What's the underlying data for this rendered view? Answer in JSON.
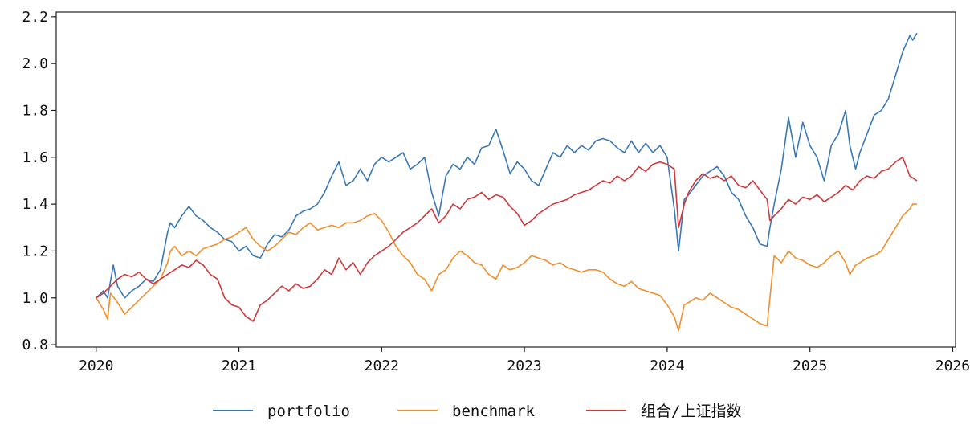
{
  "chart_data": {
    "type": "line",
    "title": "",
    "xlabel": "",
    "ylabel": "",
    "xlim": [
      2019.72,
      2026.02
    ],
    "ylim": [
      0.79,
      2.22
    ],
    "x_ticks": [
      "2020",
      "2021",
      "2022",
      "2023",
      "2024",
      "2025",
      "2026"
    ],
    "y_ticks": [
      "0.8",
      "1.0",
      "1.2",
      "1.4",
      "1.6",
      "1.8",
      "2.0",
      "2.2"
    ],
    "grid": false,
    "legend_position": "bottom-center",
    "series": [
      {
        "name": "portfolio",
        "color": "#3a78b6",
        "x": [
          2020.0,
          2020.05,
          2020.08,
          2020.12,
          2020.15,
          2020.2,
          2020.25,
          2020.3,
          2020.35,
          2020.4,
          2020.45,
          2020.5,
          2020.52,
          2020.55,
          2020.6,
          2020.65,
          2020.7,
          2020.75,
          2020.8,
          2020.85,
          2020.9,
          2020.95,
          2021.0,
          2021.05,
          2021.1,
          2021.15,
          2021.2,
          2021.25,
          2021.3,
          2021.35,
          2021.4,
          2021.45,
          2021.5,
          2021.55,
          2021.6,
          2021.65,
          2021.7,
          2021.75,
          2021.8,
          2021.85,
          2021.9,
          2021.95,
          2022.0,
          2022.05,
          2022.1,
          2022.15,
          2022.2,
          2022.25,
          2022.3,
          2022.35,
          2022.4,
          2022.45,
          2022.5,
          2022.55,
          2022.6,
          2022.65,
          2022.7,
          2022.75,
          2022.8,
          2022.85,
          2022.9,
          2022.95,
          2023.0,
          2023.05,
          2023.1,
          2023.15,
          2023.2,
          2023.25,
          2023.3,
          2023.35,
          2023.4,
          2023.45,
          2023.5,
          2023.55,
          2023.6,
          2023.65,
          2023.7,
          2023.75,
          2023.8,
          2023.85,
          2023.9,
          2023.95,
          2024.0,
          2024.05,
          2024.08,
          2024.12,
          2024.15,
          2024.2,
          2024.25,
          2024.3,
          2024.35,
          2024.4,
          2024.45,
          2024.5,
          2024.55,
          2024.6,
          2024.65,
          2024.7,
          2024.72,
          2024.75,
          2024.8,
          2024.85,
          2024.9,
          2024.95,
          2025.0,
          2025.05,
          2025.1,
          2025.15,
          2025.2,
          2025.25,
          2025.28,
          2025.32,
          2025.35,
          2025.4,
          2025.45,
          2025.5,
          2025.55,
          2025.6,
          2025.65,
          2025.7,
          2025.72,
          2025.75
        ],
        "values": [
          1.0,
          1.03,
          1.0,
          1.14,
          1.05,
          1.0,
          1.03,
          1.05,
          1.08,
          1.07,
          1.12,
          1.28,
          1.32,
          1.3,
          1.35,
          1.39,
          1.35,
          1.33,
          1.3,
          1.28,
          1.25,
          1.24,
          1.2,
          1.22,
          1.18,
          1.17,
          1.23,
          1.27,
          1.26,
          1.29,
          1.35,
          1.37,
          1.38,
          1.4,
          1.45,
          1.52,
          1.58,
          1.48,
          1.5,
          1.55,
          1.5,
          1.57,
          1.6,
          1.58,
          1.6,
          1.62,
          1.55,
          1.57,
          1.6,
          1.45,
          1.35,
          1.52,
          1.57,
          1.55,
          1.6,
          1.57,
          1.64,
          1.65,
          1.72,
          1.63,
          1.53,
          1.58,
          1.55,
          1.5,
          1.48,
          1.55,
          1.62,
          1.6,
          1.65,
          1.62,
          1.65,
          1.63,
          1.67,
          1.68,
          1.67,
          1.64,
          1.62,
          1.67,
          1.62,
          1.66,
          1.62,
          1.65,
          1.6,
          1.38,
          1.2,
          1.42,
          1.44,
          1.48,
          1.52,
          1.54,
          1.56,
          1.52,
          1.45,
          1.42,
          1.35,
          1.3,
          1.23,
          1.22,
          1.3,
          1.4,
          1.55,
          1.77,
          1.6,
          1.75,
          1.65,
          1.6,
          1.5,
          1.65,
          1.7,
          1.8,
          1.65,
          1.55,
          1.62,
          1.7,
          1.78,
          1.8,
          1.85,
          1.95,
          2.05,
          2.12,
          2.1,
          2.13
        ]
      },
      {
        "name": "benchmark",
        "color": "#f28e2b",
        "x": [
          2020.0,
          2020.05,
          2020.08,
          2020.1,
          2020.15,
          2020.2,
          2020.25,
          2020.3,
          2020.35,
          2020.4,
          2020.45,
          2020.5,
          2020.52,
          2020.55,
          2020.6,
          2020.65,
          2020.7,
          2020.75,
          2020.8,
          2020.85,
          2020.9,
          2020.95,
          2021.0,
          2021.05,
          2021.1,
          2021.15,
          2021.2,
          2021.25,
          2021.3,
          2021.35,
          2021.4,
          2021.45,
          2021.5,
          2021.55,
          2021.6,
          2021.65,
          2021.7,
          2021.75,
          2021.8,
          2021.85,
          2021.9,
          2021.95,
          2022.0,
          2022.05,
          2022.1,
          2022.15,
          2022.2,
          2022.25,
          2022.3,
          2022.35,
          2022.4,
          2022.45,
          2022.5,
          2022.55,
          2022.6,
          2022.65,
          2022.7,
          2022.75,
          2022.8,
          2022.85,
          2022.9,
          2022.95,
          2023.0,
          2023.05,
          2023.1,
          2023.15,
          2023.2,
          2023.25,
          2023.3,
          2023.35,
          2023.4,
          2023.45,
          2023.5,
          2023.55,
          2023.6,
          2023.65,
          2023.7,
          2023.75,
          2023.8,
          2023.85,
          2023.9,
          2023.95,
          2024.0,
          2024.05,
          2024.08,
          2024.12,
          2024.15,
          2024.2,
          2024.25,
          2024.3,
          2024.35,
          2024.4,
          2024.45,
          2024.5,
          2024.55,
          2024.6,
          2024.65,
          2024.7,
          2024.72,
          2024.75,
          2024.8,
          2024.85,
          2024.9,
          2024.95,
          2025.0,
          2025.05,
          2025.1,
          2025.15,
          2025.2,
          2025.25,
          2025.28,
          2025.32,
          2025.35,
          2025.4,
          2025.45,
          2025.5,
          2025.55,
          2025.6,
          2025.65,
          2025.7,
          2025.72,
          2025.75
        ],
        "values": [
          1.0,
          0.95,
          0.91,
          1.02,
          0.98,
          0.93,
          0.96,
          0.99,
          1.02,
          1.05,
          1.08,
          1.15,
          1.2,
          1.22,
          1.18,
          1.2,
          1.18,
          1.21,
          1.22,
          1.23,
          1.25,
          1.26,
          1.28,
          1.3,
          1.25,
          1.22,
          1.2,
          1.22,
          1.25,
          1.28,
          1.27,
          1.3,
          1.32,
          1.29,
          1.3,
          1.31,
          1.3,
          1.32,
          1.32,
          1.33,
          1.35,
          1.36,
          1.33,
          1.28,
          1.22,
          1.18,
          1.15,
          1.1,
          1.08,
          1.03,
          1.1,
          1.12,
          1.17,
          1.2,
          1.18,
          1.15,
          1.14,
          1.1,
          1.08,
          1.14,
          1.12,
          1.13,
          1.15,
          1.18,
          1.17,
          1.16,
          1.14,
          1.15,
          1.13,
          1.12,
          1.11,
          1.12,
          1.12,
          1.11,
          1.08,
          1.06,
          1.05,
          1.07,
          1.04,
          1.03,
          1.02,
          1.01,
          0.97,
          0.92,
          0.86,
          0.97,
          0.98,
          1.0,
          0.99,
          1.02,
          1.0,
          0.98,
          0.96,
          0.95,
          0.93,
          0.91,
          0.89,
          0.88,
          1.0,
          1.18,
          1.15,
          1.2,
          1.17,
          1.16,
          1.14,
          1.13,
          1.15,
          1.18,
          1.2,
          1.15,
          1.1,
          1.14,
          1.15,
          1.17,
          1.18,
          1.2,
          1.25,
          1.3,
          1.35,
          1.38,
          1.4,
          1.4
        ]
      },
      {
        "name": "组合/上证指数",
        "color": "#d0383a",
        "x": [
          2020.0,
          2020.05,
          2020.1,
          2020.15,
          2020.2,
          2020.25,
          2020.3,
          2020.35,
          2020.4,
          2020.45,
          2020.5,
          2020.55,
          2020.6,
          2020.65,
          2020.7,
          2020.75,
          2020.8,
          2020.85,
          2020.9,
          2020.95,
          2021.0,
          2021.05,
          2021.1,
          2021.15,
          2021.2,
          2021.25,
          2021.3,
          2021.35,
          2021.4,
          2021.45,
          2021.5,
          2021.55,
          2021.6,
          2021.65,
          2021.7,
          2021.75,
          2021.8,
          2021.85,
          2021.9,
          2021.95,
          2022.0,
          2022.05,
          2022.1,
          2022.15,
          2022.2,
          2022.25,
          2022.3,
          2022.35,
          2022.4,
          2022.45,
          2022.5,
          2022.55,
          2022.6,
          2022.65,
          2022.7,
          2022.75,
          2022.8,
          2022.85,
          2022.9,
          2022.95,
          2023.0,
          2023.05,
          2023.1,
          2023.15,
          2023.2,
          2023.25,
          2023.3,
          2023.35,
          2023.4,
          2023.45,
          2023.5,
          2023.55,
          2023.6,
          2023.65,
          2023.7,
          2023.75,
          2023.8,
          2023.85,
          2023.9,
          2023.95,
          2024.0,
          2024.05,
          2024.08,
          2024.12,
          2024.15,
          2024.2,
          2024.25,
          2024.3,
          2024.35,
          2024.4,
          2024.45,
          2024.5,
          2024.55,
          2024.6,
          2024.65,
          2024.7,
          2024.72,
          2024.75,
          2024.8,
          2024.85,
          2024.9,
          2024.95,
          2025.0,
          2025.05,
          2025.1,
          2025.15,
          2025.2,
          2025.25,
          2025.3,
          2025.35,
          2025.4,
          2025.45,
          2025.5,
          2025.55,
          2025.6,
          2025.65,
          2025.7,
          2025.75
        ],
        "values": [
          1.0,
          1.02,
          1.05,
          1.08,
          1.1,
          1.09,
          1.11,
          1.08,
          1.06,
          1.08,
          1.1,
          1.12,
          1.14,
          1.13,
          1.16,
          1.14,
          1.1,
          1.08,
          1.0,
          0.97,
          0.96,
          0.92,
          0.9,
          0.97,
          0.99,
          1.02,
          1.05,
          1.03,
          1.06,
          1.04,
          1.05,
          1.08,
          1.12,
          1.1,
          1.17,
          1.12,
          1.15,
          1.1,
          1.15,
          1.18,
          1.2,
          1.22,
          1.25,
          1.28,
          1.3,
          1.32,
          1.35,
          1.38,
          1.32,
          1.35,
          1.4,
          1.38,
          1.42,
          1.43,
          1.45,
          1.42,
          1.44,
          1.43,
          1.39,
          1.36,
          1.31,
          1.33,
          1.36,
          1.38,
          1.4,
          1.41,
          1.42,
          1.44,
          1.45,
          1.46,
          1.48,
          1.5,
          1.49,
          1.52,
          1.5,
          1.52,
          1.56,
          1.54,
          1.57,
          1.58,
          1.57,
          1.55,
          1.3,
          1.4,
          1.45,
          1.5,
          1.53,
          1.51,
          1.52,
          1.5,
          1.52,
          1.48,
          1.47,
          1.5,
          1.46,
          1.42,
          1.33,
          1.35,
          1.38,
          1.42,
          1.4,
          1.43,
          1.42,
          1.44,
          1.41,
          1.43,
          1.45,
          1.48,
          1.46,
          1.5,
          1.52,
          1.51,
          1.54,
          1.55,
          1.58,
          1.6,
          1.52,
          1.5
        ]
      }
    ]
  }
}
